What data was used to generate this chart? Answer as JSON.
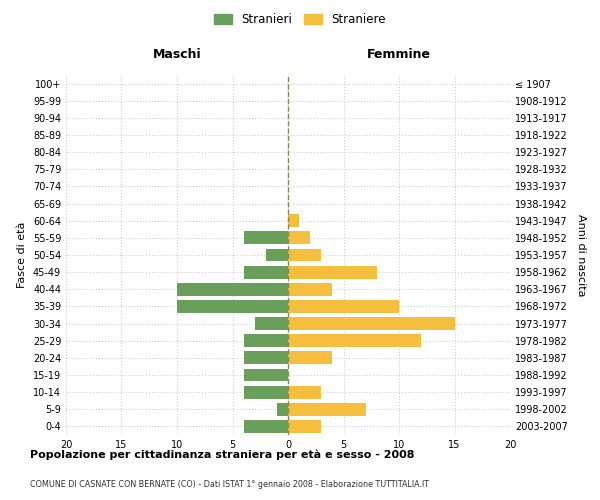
{
  "age_groups": [
    "0-4",
    "5-9",
    "10-14",
    "15-19",
    "20-24",
    "25-29",
    "30-34",
    "35-39",
    "40-44",
    "45-49",
    "50-54",
    "55-59",
    "60-64",
    "65-69",
    "70-74",
    "75-79",
    "80-84",
    "85-89",
    "90-94",
    "95-99",
    "100+"
  ],
  "birth_years": [
    "2003-2007",
    "1998-2002",
    "1993-1997",
    "1988-1992",
    "1983-1987",
    "1978-1982",
    "1973-1977",
    "1968-1972",
    "1963-1967",
    "1958-1962",
    "1953-1957",
    "1948-1952",
    "1943-1947",
    "1938-1942",
    "1933-1937",
    "1928-1932",
    "1923-1927",
    "1918-1922",
    "1913-1917",
    "1908-1912",
    "≤ 1907"
  ],
  "maschi": [
    4,
    1,
    4,
    4,
    4,
    4,
    3,
    10,
    10,
    4,
    2,
    4,
    0,
    0,
    0,
    0,
    0,
    0,
    0,
    0,
    0
  ],
  "femmine": [
    3,
    7,
    3,
    0,
    4,
    12,
    15,
    10,
    4,
    8,
    3,
    2,
    1,
    0,
    0,
    0,
    0,
    0,
    0,
    0,
    0
  ],
  "color_maschi": "#6a9f5b",
  "color_femmine": "#f5be3c",
  "title": "Popolazione per cittadinanza straniera per età e sesso - 2008",
  "subtitle": "COMUNE DI CASNATE CON BERNATE (CO) - Dati ISTAT 1° gennaio 2008 - Elaborazione TUTTITALIA.IT",
  "xlabel_left": "Maschi",
  "xlabel_right": "Femmine",
  "ylabel_left": "Fasce di età",
  "ylabel_right": "Anni di nascita",
  "legend_maschi": "Stranieri",
  "legend_femmine": "Straniere",
  "xlim": 20,
  "background_color": "#ffffff",
  "grid_color": "#cccccc"
}
